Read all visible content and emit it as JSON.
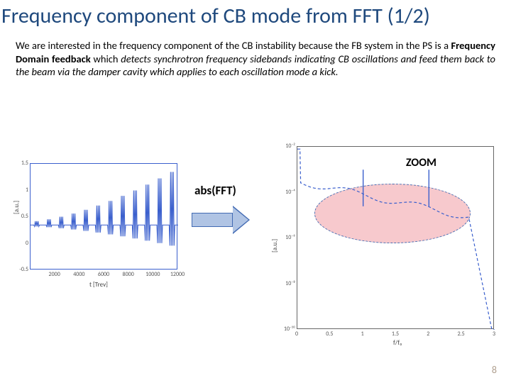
{
  "title": "Frequency component of CB mode from FFT (1/2)",
  "paragraph": {
    "seg1": "We are interested in the frequency component of the CB instability because the FB system in the PS is a ",
    "bold1": "Frequency Domain feedback",
    "seg2": " which ",
    "italic1": "detects synchrotron frequency sidebands indicating CB oscillations and feed them back to the beam via the damper cavity which applies to each oscillation mode a kick.",
    "seg3": ""
  },
  "arrow_label": "abs(FFT)",
  "zoom_label": "ZOOM",
  "page_number": "8",
  "left_chart": {
    "type": "line",
    "xlabel": "t [Trev]",
    "ylabel": "[a.u.]",
    "xlim": [
      0,
      12000
    ],
    "ylim": [
      -0.5,
      1.5
    ],
    "xticks": [
      2000,
      4000,
      6000,
      8000,
      10000,
      12000
    ],
    "yticks": [
      -0.5,
      0,
      0.5,
      1,
      1.5
    ],
    "line_color": "#3a5fcd",
    "border_color": "#3a5fcd",
    "background_color": "#ffffff",
    "oscillation_count": 12,
    "amplitude_growth": "exponential"
  },
  "right_chart": {
    "type": "line",
    "xlabel": "f/f₀",
    "ylabel": "[a.u.]",
    "xlim": [
      0,
      3
    ],
    "ylim_log": [
      -10,
      -2
    ],
    "xticks": [
      0,
      0.5,
      1,
      1.5,
      2,
      2.5,
      3
    ],
    "yticks_exp": [
      "10⁻²",
      "10⁻⁴",
      "10⁻⁶",
      "10⁻⁸",
      "10⁻¹⁰"
    ],
    "line_color": "#3a5fcd",
    "border_color": "#666666",
    "background_color": "#ffffff",
    "zoom_ellipse_color": "#f7c9cd",
    "zoom_dash_color": "#4a6fb3",
    "spike_positions_f": [
      1.0,
      2.0
    ],
    "scale": "log"
  },
  "colors": {
    "title_color": "#1f497d",
    "arrow_fill": "#b0c4e4",
    "arrow_border": "#426ab3",
    "page_num_color": "#b0a090"
  }
}
